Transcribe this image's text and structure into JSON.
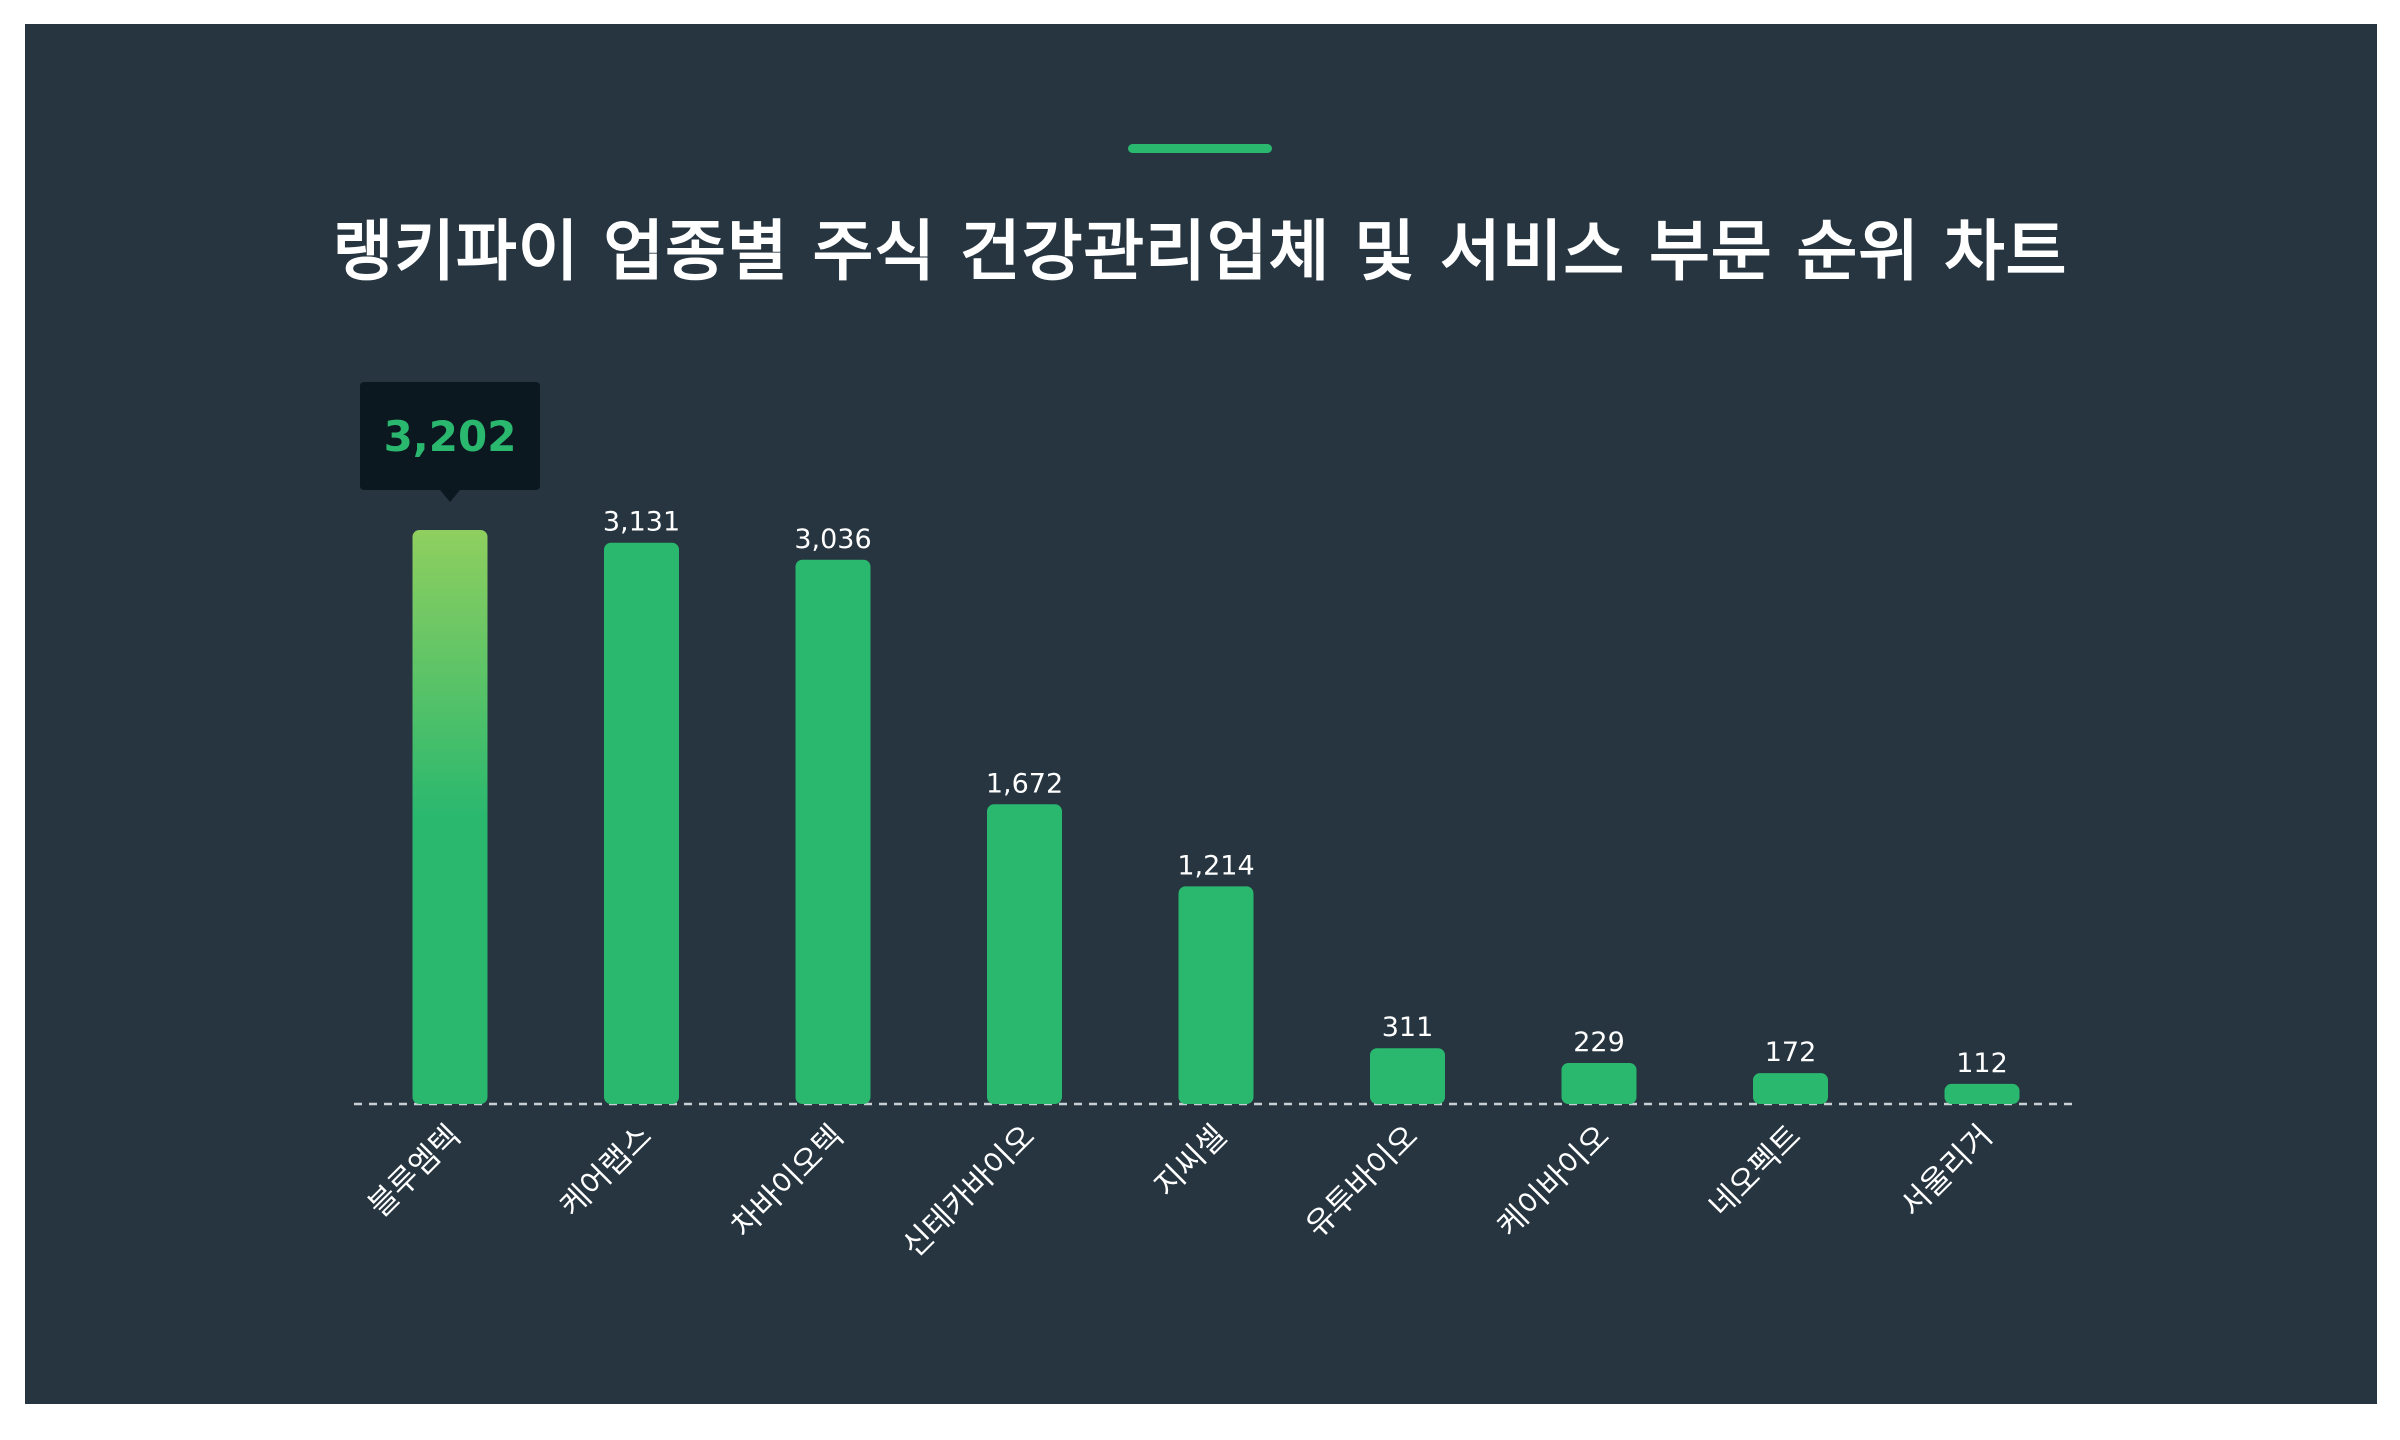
{
  "title": "랭키파이 업종별 주식 건강관리업체 및 서비스 부문 순위 차트",
  "colors": {
    "background": "#263540",
    "bar": "#2ab86f",
    "highlight_top": "#8fcf5f",
    "tooltip_bg": "#0c1820",
    "tooltip_text": "#2ab86f",
    "label": "#ffffff",
    "baseline": "#c9d0d4"
  },
  "chart_data": {
    "type": "bar",
    "title": "랭키파이 업종별 주식 건강관리업체 및 서비스 부문 순위 차트",
    "xlabel": "",
    "ylabel": "",
    "categories": [
      "블루엠텍",
      "케어랩스",
      "차바이오텍",
      "신테카바이오",
      "지씨셀",
      "유투바이오",
      "케이바이오",
      "네오펙트",
      "서울리거"
    ],
    "values": [
      3202,
      3131,
      3036,
      1672,
      1214,
      311,
      229,
      172,
      112
    ],
    "value_labels": [
      "3,202",
      "3,131",
      "3,036",
      "1,672",
      "1,214",
      "311",
      "229",
      "172",
      "112"
    ],
    "highlight_index": 0,
    "ylim": [
      0,
      3202
    ],
    "grid": false,
    "legend": "none"
  }
}
